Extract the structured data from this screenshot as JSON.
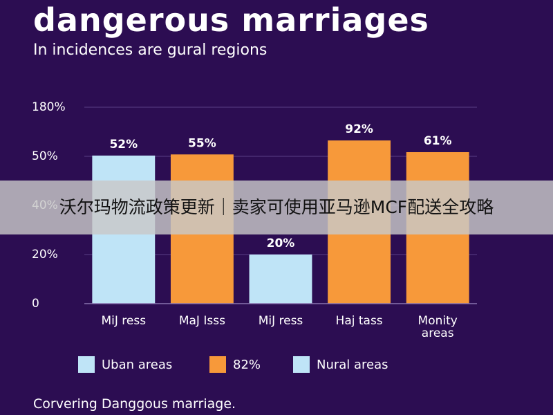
{
  "chart_data": {
    "type": "bar",
    "title": "dangerous marriages",
    "subtitle": "In incidences are gural regions",
    "categories": [
      "MiJ ress",
      "MaJ Isss",
      "MiJ ress",
      "Haj tass",
      "Monity areas"
    ],
    "values": [
      52,
      55,
      20,
      92,
      61
    ],
    "value_labels": [
      "52%",
      "55%",
      "20%",
      "92%",
      "61%"
    ],
    "colors": [
      "#bfe4f7",
      "#f7993a",
      "#bfe4f7",
      "#f7993a",
      "#f7993a"
    ],
    "yticks": [
      {
        "value": 0,
        "label": "0"
      },
      {
        "value": 20,
        "label": "20%"
      },
      {
        "value": 40,
        "label": "40%"
      },
      {
        "value": 50,
        "label": "50%"
      },
      {
        "value": 180,
        "label": "180%"
      }
    ],
    "grid": true,
    "legend": [
      {
        "name": "Uban areas",
        "color": "#bfe4f7"
      },
      {
        "name": "82%",
        "color": "#f7993a"
      },
      {
        "name": "Nural areas",
        "color": "#bfe4f7"
      }
    ],
    "footnote": "Corvering Danggous marriage."
  },
  "overlay_banner": "沃尔玛物流政策更新｜卖家可使用亚马逊MCF配送全攻略"
}
